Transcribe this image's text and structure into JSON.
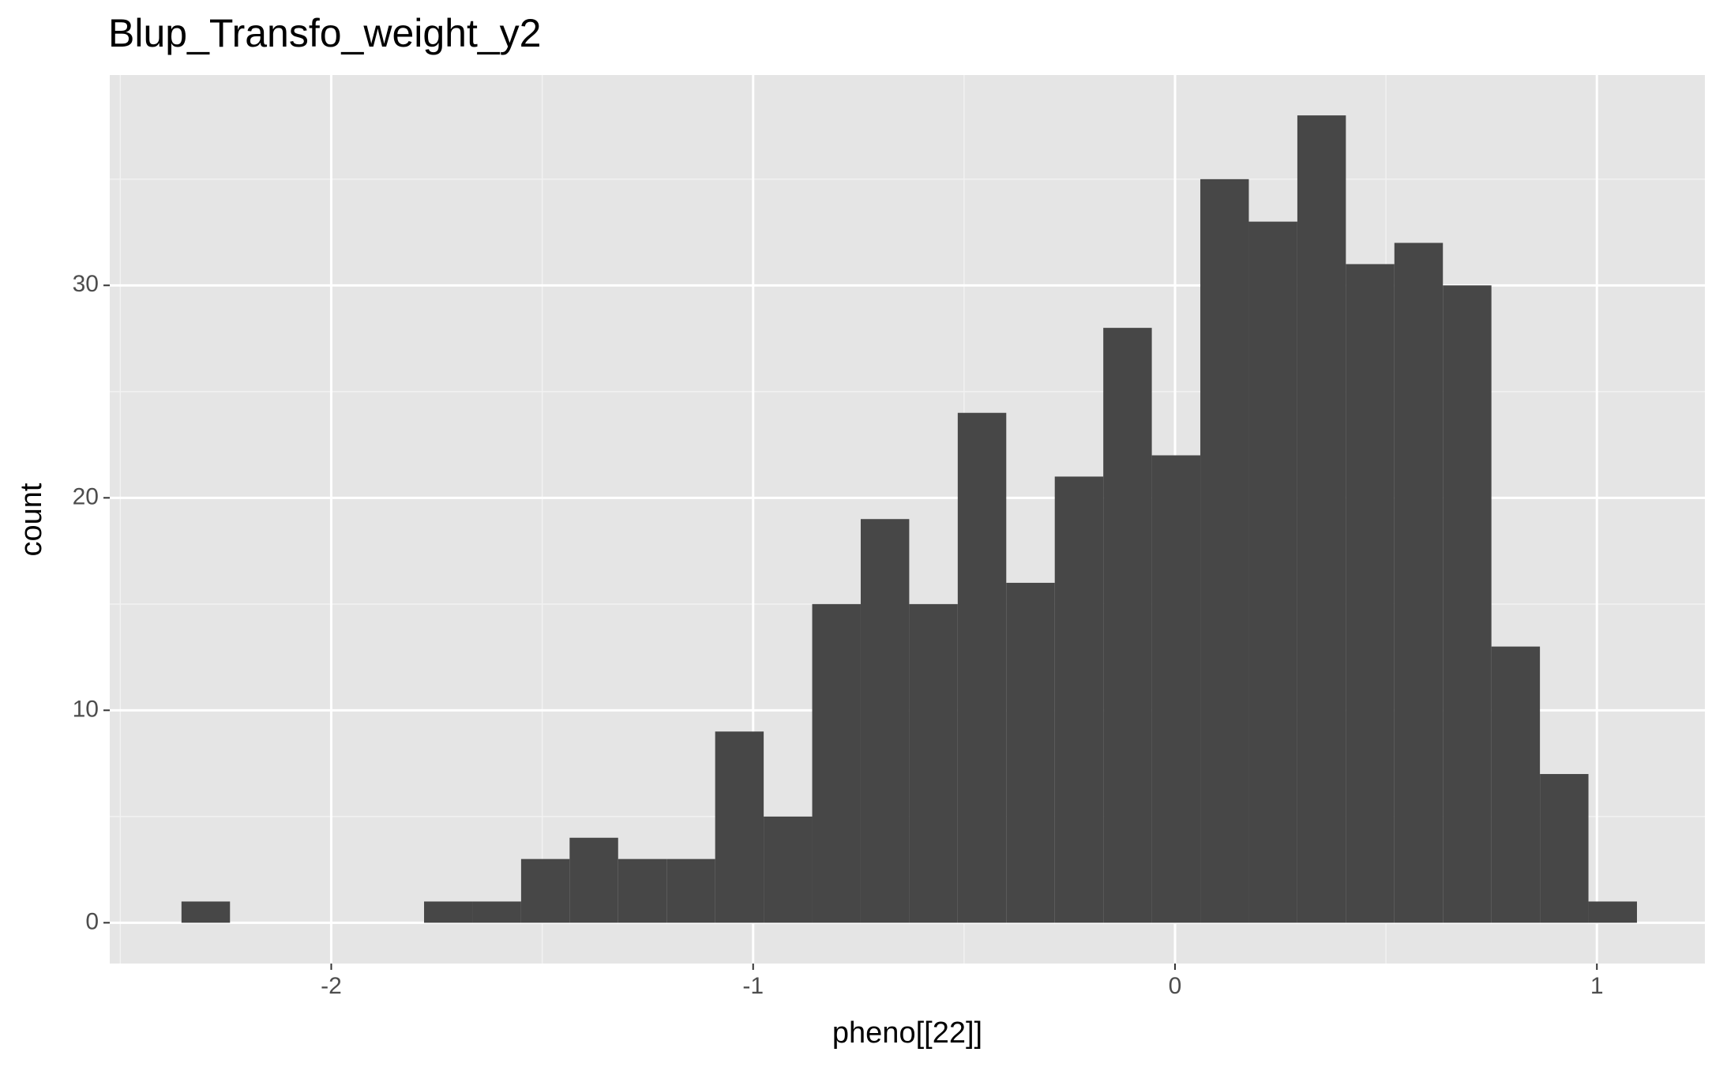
{
  "chart_data": {
    "type": "histogram",
    "title": "Blup_Transfo_weight_y2",
    "x_label": "pheno[[22]]",
    "y_label": "count",
    "bins": [
      -2.355,
      -2.24,
      -2.125,
      -2.01,
      -1.895,
      -1.78,
      -1.665,
      -1.55,
      -1.435,
      -1.32,
      -1.205,
      -1.09,
      -0.975,
      -0.86,
      -0.745,
      -0.63,
      -0.515,
      -0.4,
      -0.285,
      -0.17,
      -0.055,
      0.06,
      0.175,
      0.29,
      0.405,
      0.52,
      0.635,
      0.75,
      0.865,
      0.98,
      1.095
    ],
    "counts": [
      1,
      0,
      0,
      0,
      0,
      1,
      1,
      3,
      4,
      3,
      3,
      9,
      5,
      15,
      19,
      15,
      24,
      16,
      21,
      28,
      22,
      35,
      33,
      38,
      31,
      32,
      30,
      13,
      7,
      1
    ],
    "color": "#474747",
    "xlim": [
      -2.525,
      1.256
    ],
    "ylim": [
      -1.92,
      39.9
    ],
    "xticks": [
      -2,
      -1,
      0,
      1
    ],
    "yticks": [
      0,
      10,
      20,
      30
    ],
    "grid": true
  }
}
